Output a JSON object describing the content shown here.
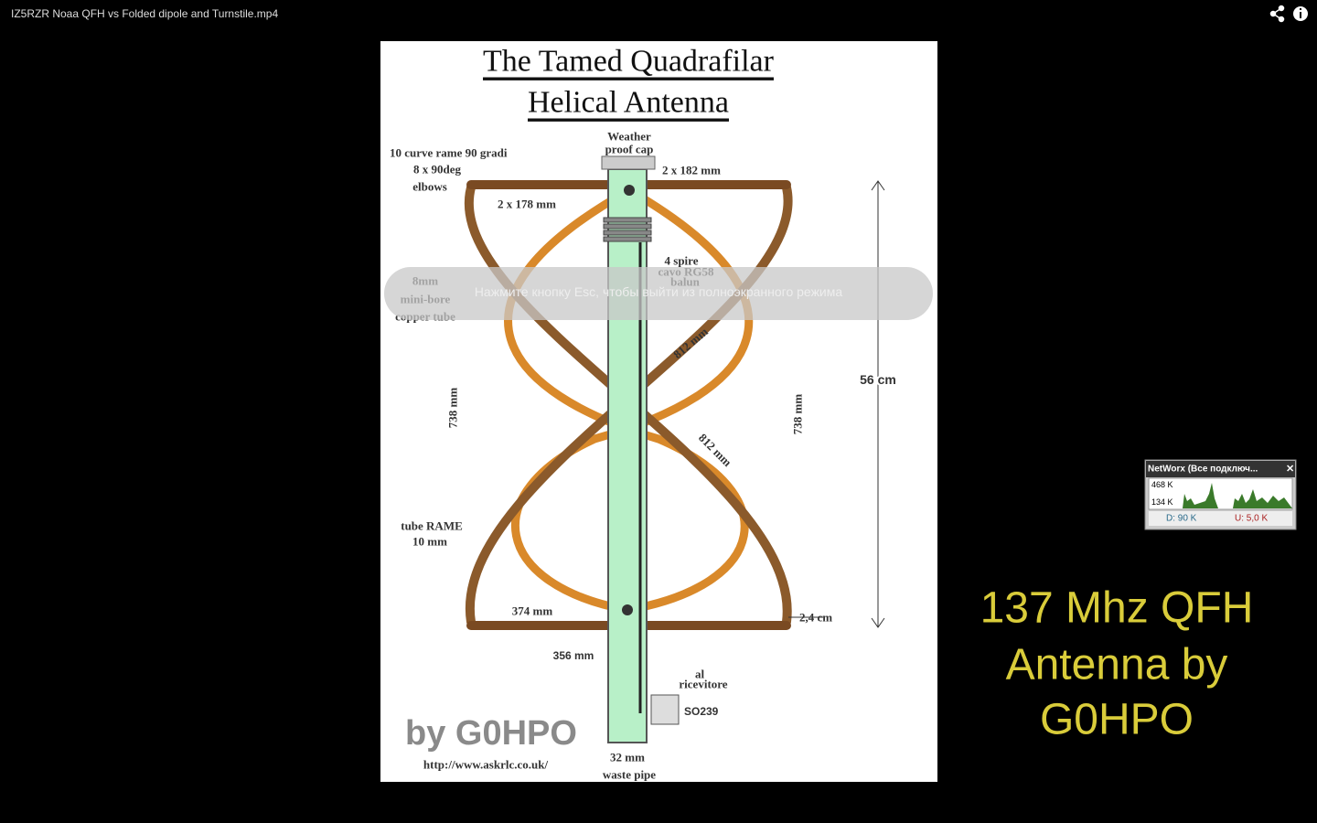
{
  "player": {
    "title": "IZ5RZR Noaa QFH vs Folded dipole and Turnstile.mp4"
  },
  "diagram": {
    "title_lines": [
      "The Tamed Quadrafilar",
      "Helical Antenna"
    ],
    "labels": {
      "cap": [
        "Weather",
        "proof cap"
      ],
      "curves": "10 curve rame 90 gradi",
      "elbows": [
        "8 x 90deg",
        "elbows"
      ],
      "top_bar": "2 x 182 mm",
      "inner_bar": "2 x 178 mm",
      "balun": [
        "4 spire",
        "cavo RG58",
        "balun"
      ],
      "tube": [
        "8mm",
        "mini-bore",
        "copper tube"
      ],
      "loop_a": "812 mm",
      "loop_b": "812 mm",
      "height": "56 cm",
      "side_left": "738 mm",
      "side_right": "738 mm",
      "rame": [
        "tube RAME",
        "10 mm"
      ],
      "bottom_bar": "374 mm",
      "gap": "2,4 cm",
      "bottom_inner": "356 mm",
      "receiver": [
        "al",
        "ricevitore"
      ],
      "connector": "SO239",
      "author": "by G0HPO",
      "url": "http://www.askrlc.co.uk/",
      "pipe": [
        "32 mm",
        "waste pipe"
      ]
    }
  },
  "overlay": {
    "message": "Нажмите кнопку Esc, чтобы выйти из полноэкранного режима"
  },
  "caption": {
    "lines": [
      "137 Mhz QFH",
      "Antenna by",
      "G0HPO"
    ]
  },
  "widget": {
    "title": "NetWorx (Все подключ...",
    "scale_top": "468 K",
    "scale_bottom": "134 K",
    "download": "D: 90 K",
    "upload": "U: 5,0 K"
  }
}
